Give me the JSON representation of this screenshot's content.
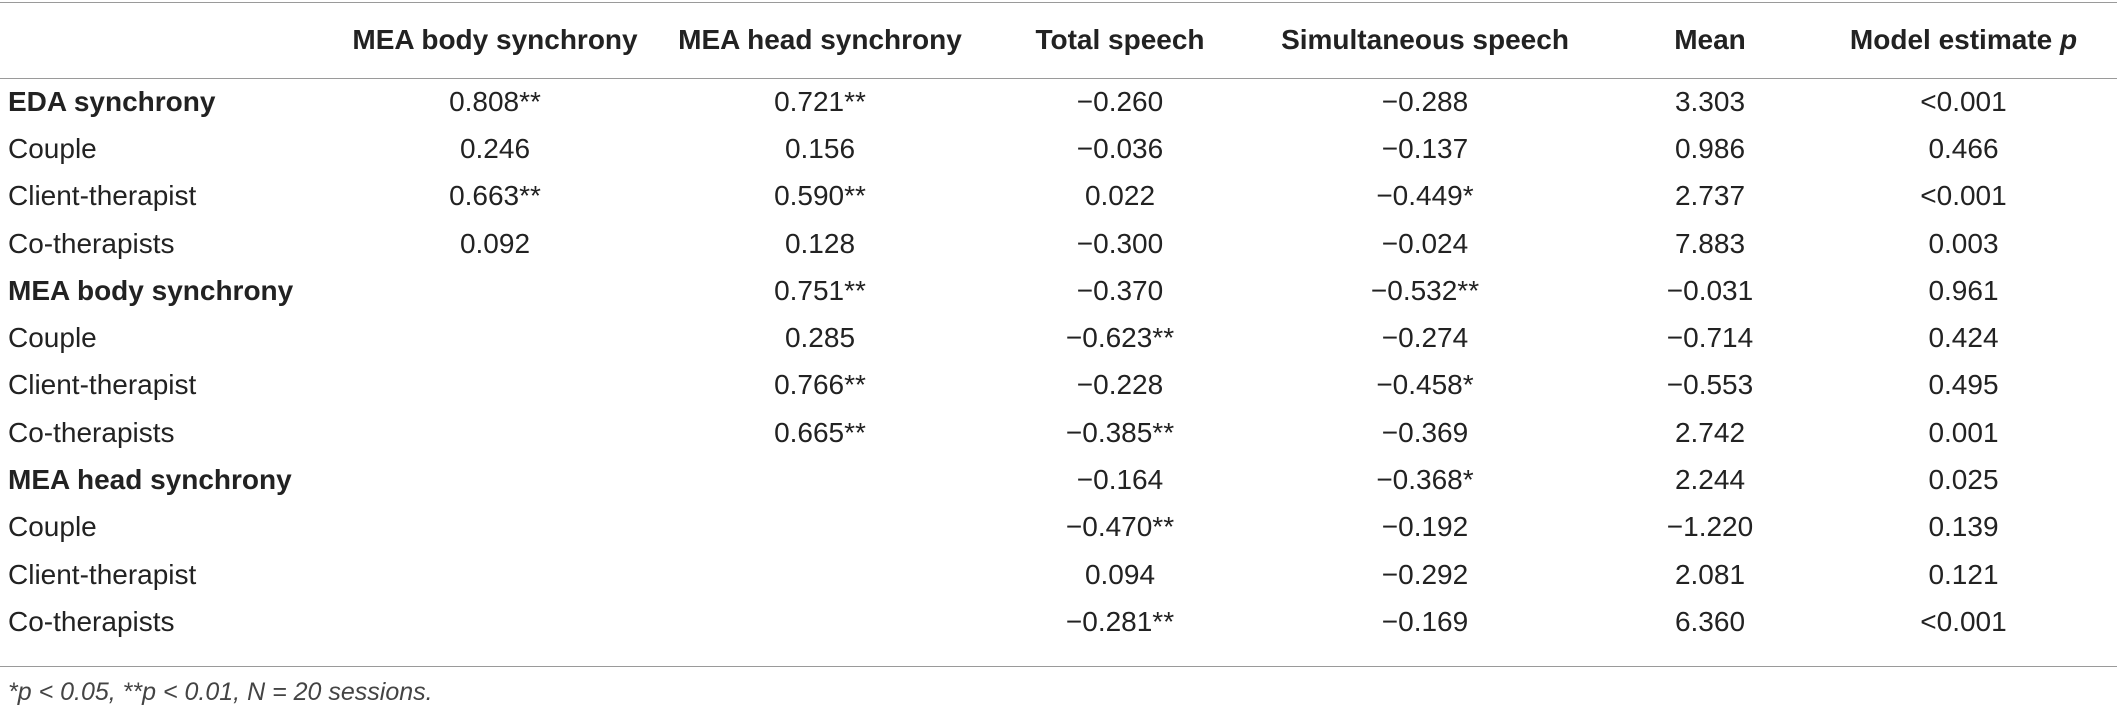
{
  "table": {
    "headers": [
      "",
      "MEA body synchrony",
      "MEA head synchrony",
      "Total speech",
      "Simultaneous speech",
      "Mean",
      "Model estimate p"
    ],
    "rows": [
      {
        "label": "EDA synchrony",
        "bold": true,
        "cells": [
          "0.808**",
          "0.721**",
          "−0.260",
          "−0.288",
          "3.303",
          "<0.001"
        ]
      },
      {
        "label": "Couple",
        "bold": false,
        "cells": [
          "0.246",
          "0.156",
          "−0.036",
          "−0.137",
          "0.986",
          "0.466"
        ]
      },
      {
        "label": "Client-therapist",
        "bold": false,
        "cells": [
          "0.663**",
          "0.590**",
          "0.022",
          "−0.449*",
          "2.737",
          "<0.001"
        ]
      },
      {
        "label": "Co-therapists",
        "bold": false,
        "cells": [
          "0.092",
          "0.128",
          "−0.300",
          "−0.024",
          "7.883",
          "0.003"
        ]
      },
      {
        "label": "MEA body synchrony",
        "bold": true,
        "cells": [
          "",
          "0.751**",
          "−0.370",
          "−0.532**",
          "−0.031",
          "0.961"
        ]
      },
      {
        "label": "Couple",
        "bold": false,
        "cells": [
          "",
          "0.285",
          "−0.623**",
          "−0.274",
          "−0.714",
          "0.424"
        ]
      },
      {
        "label": "Client-therapist",
        "bold": false,
        "cells": [
          "",
          "0.766**",
          "−0.228",
          "−0.458*",
          "−0.553",
          "0.495"
        ]
      },
      {
        "label": "Co-therapists",
        "bold": false,
        "cells": [
          "",
          "0.665**",
          "−0.385**",
          "−0.369",
          "2.742",
          "0.001"
        ]
      },
      {
        "label": "MEA head synchrony",
        "bold": true,
        "cells": [
          "",
          "",
          "−0.164",
          "−0.368*",
          "2.244",
          "0.025"
        ]
      },
      {
        "label": "Couple",
        "bold": false,
        "cells": [
          "",
          "",
          "−0.470**",
          "−0.192",
          "−1.220",
          "0.139"
        ]
      },
      {
        "label": "Client-therapist",
        "bold": false,
        "cells": [
          "",
          "",
          "0.094",
          "−0.292",
          "2.081",
          "0.121"
        ]
      },
      {
        "label": "Co-therapists",
        "bold": false,
        "cells": [
          "",
          "",
          "−0.281**",
          "−0.169",
          "6.360",
          "<0.001"
        ]
      }
    ]
  },
  "footnote": "*p < 0.05, **p < 0.01, N = 20 sessions."
}
